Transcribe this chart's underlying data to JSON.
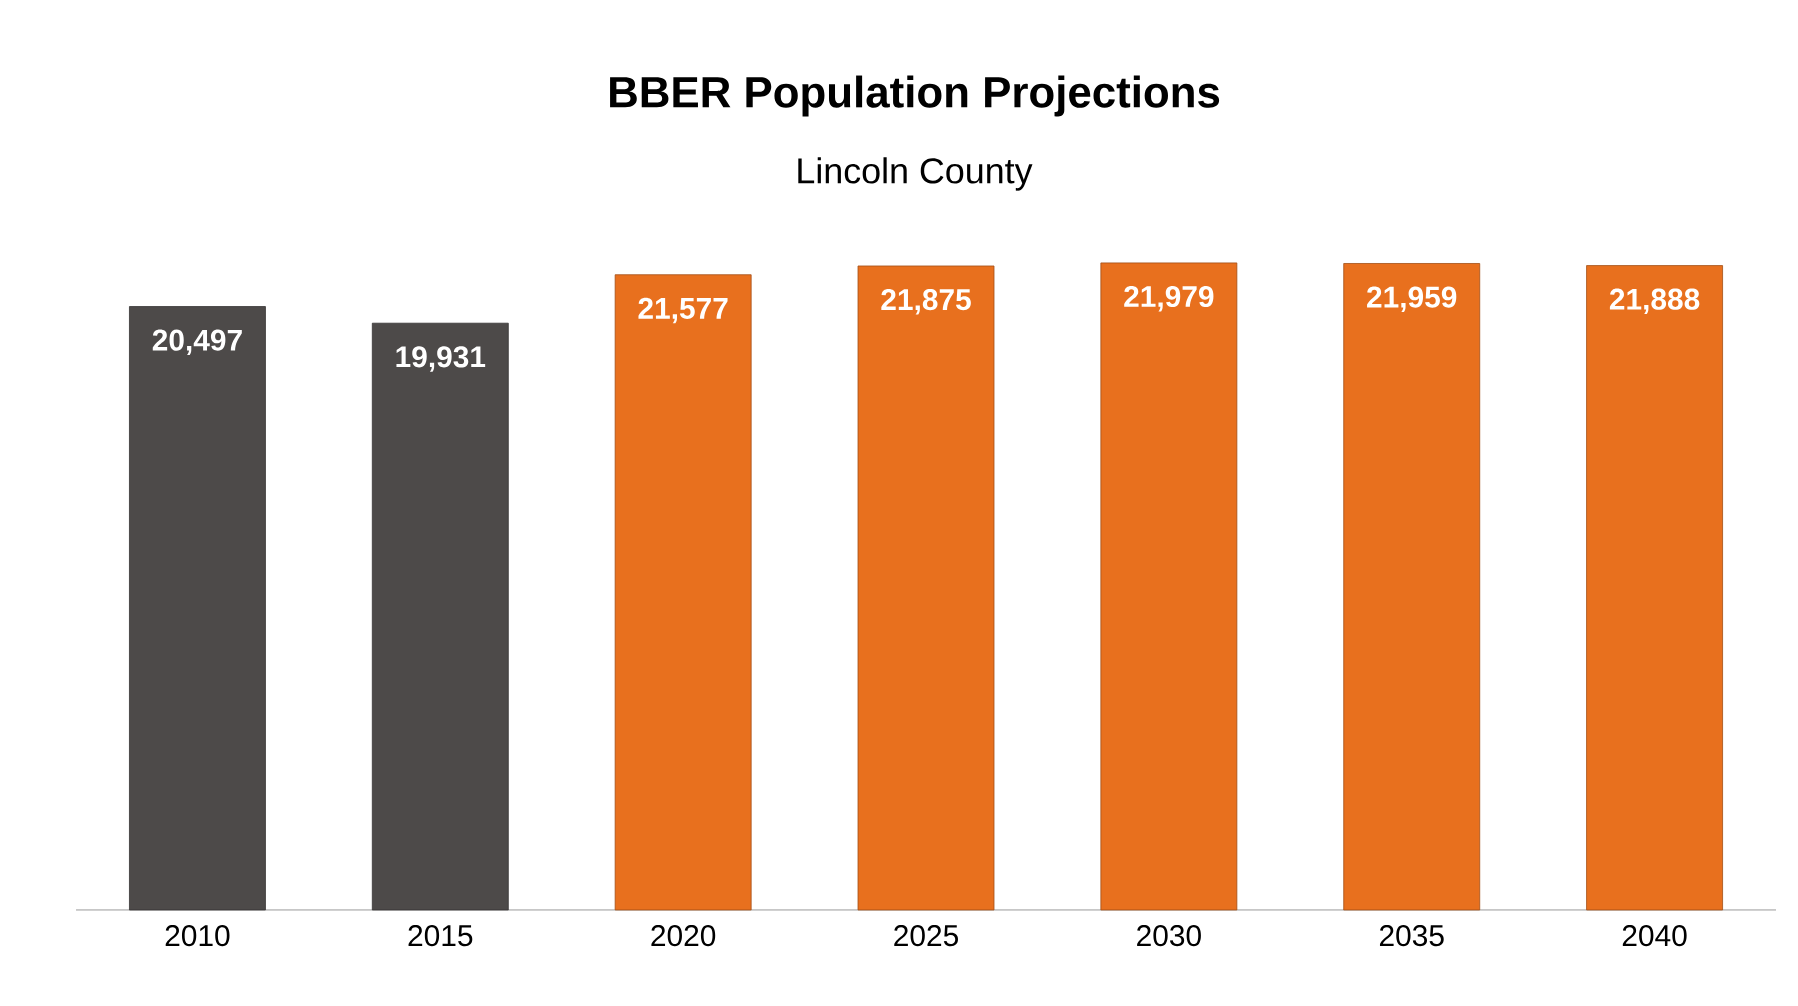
{
  "chart_data": {
    "type": "bar",
    "title": "BBER Population Projections",
    "subtitle": "Lincoln County",
    "categories": [
      "2010",
      "2015",
      "2020",
      "2025",
      "2030",
      "2035",
      "2040"
    ],
    "values": [
      20497,
      19931,
      21577,
      21875,
      21979,
      21959,
      21888
    ],
    "value_labels": [
      "20,497",
      "19,931",
      "21,577",
      "21,875",
      "21,979",
      "21,959",
      "21,888"
    ],
    "colors": [
      "#4d4a49",
      "#4d4a49",
      "#e8701e",
      "#e8701e",
      "#e8701e",
      "#e8701e",
      "#e8701e"
    ]
  }
}
